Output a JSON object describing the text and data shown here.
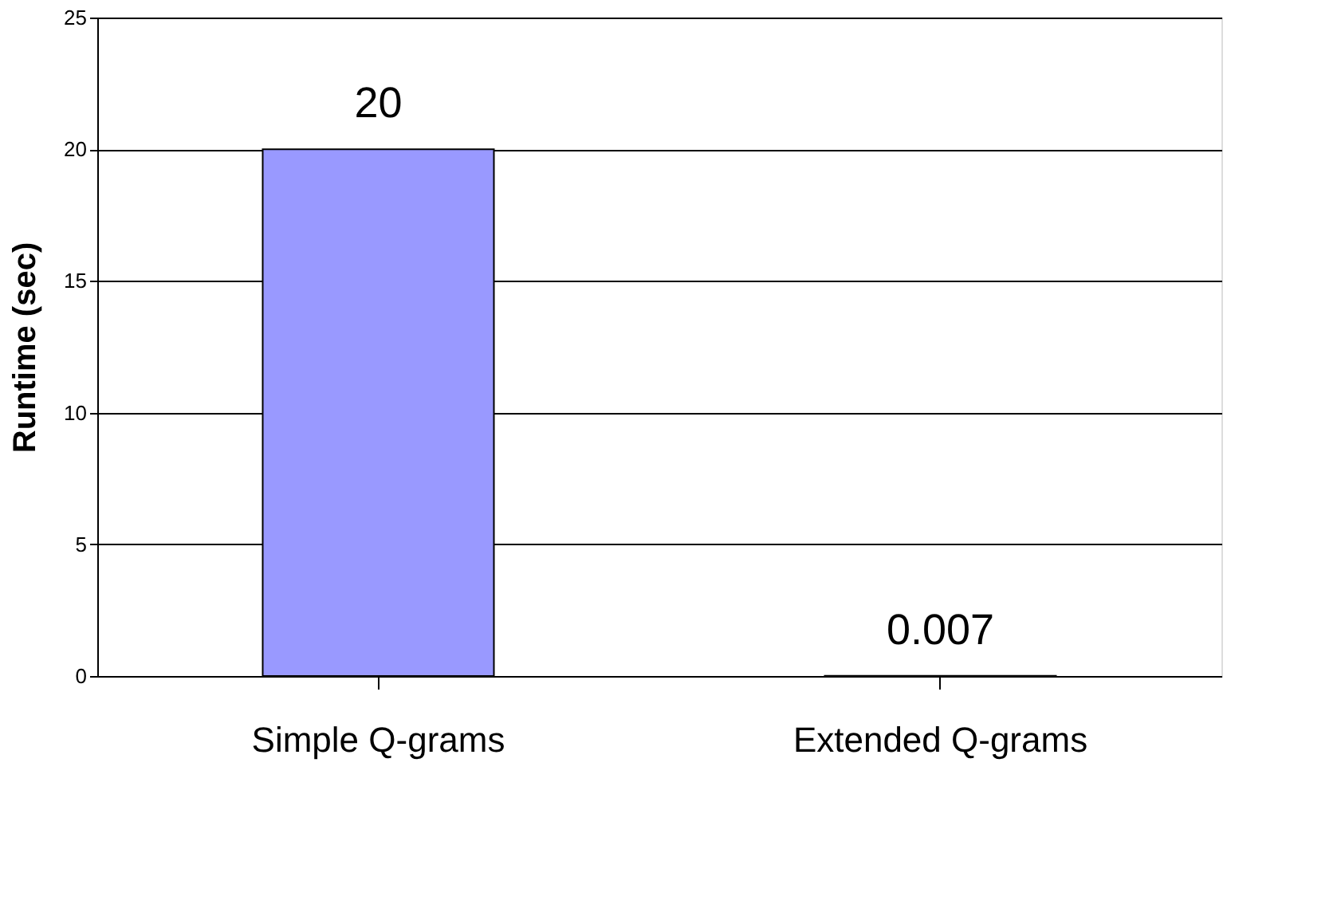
{
  "chart_data": {
    "type": "bar",
    "ylabel": "Runtime (sec)",
    "categories": [
      "Simple Q-grams",
      "Extended Q-grams"
    ],
    "values": [
      20,
      0.007
    ],
    "color": "#9999ff",
    "ylim": [
      0,
      25
    ],
    "yticks": [
      0,
      5,
      10,
      15,
      20,
      25
    ],
    "grid": "y",
    "data_labels": true
  }
}
